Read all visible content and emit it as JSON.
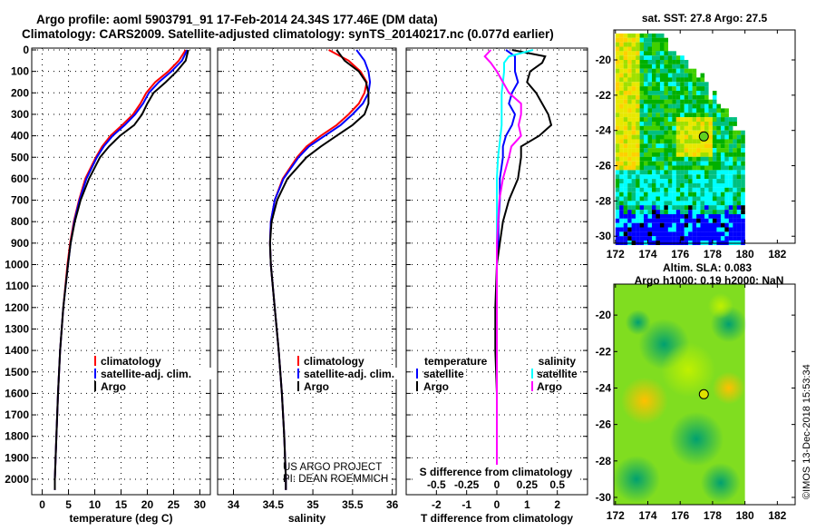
{
  "header": {
    "title_line1": "Argo profile: aoml 5903791_91 17-Feb-2014 24.34S 177.46E (DM data)",
    "title_line2": "Climatology: CARS2009. Satellite-adjusted climatology: synTS_20140217.nc (0.077d earlier)"
  },
  "credits": {
    "line1": "US ARGO PROJECT",
    "line2": "PI: DEAN ROEMMICH",
    "stamp": "©IMOS 13-Dec-2018 15:53:34"
  },
  "colors": {
    "climatology": "#ff0000",
    "satellite": "#0000ff",
    "argo": "#000000",
    "sal_satellite": "#00ffff",
    "sal_argo": "#ff00ff"
  },
  "chart_data": [
    {
      "type": "line",
      "id": "temperature",
      "xlabel": "temperature (deg C)",
      "ylabel": "",
      "xlim": [
        -2,
        32
      ],
      "ylim": [
        2080,
        0
      ],
      "xticks": [
        0,
        5,
        10,
        15,
        20,
        25,
        30
      ],
      "yticks": [
        0,
        100,
        200,
        300,
        400,
        500,
        600,
        700,
        800,
        900,
        1000,
        1100,
        1200,
        1300,
        1400,
        1500,
        1600,
        1700,
        1800,
        1900,
        2000
      ],
      "legend": [
        "climatology",
        "satellite-adj. clim.",
        "Argo"
      ],
      "depth": [
        0,
        50,
        100,
        150,
        200,
        250,
        300,
        350,
        400,
        450,
        500,
        600,
        700,
        800,
        900,
        1000,
        1200,
        1400,
        1600,
        1800,
        2000,
        2050
      ],
      "series": [
        {
          "name": "climatology",
          "values": [
            27.3,
            26.0,
            24.0,
            21.5,
            19.8,
            18.7,
            17.3,
            15.2,
            13.0,
            11.4,
            10.2,
            8.2,
            7.0,
            6.0,
            5.3,
            4.8,
            4.0,
            3.4,
            3.0,
            2.7,
            2.4,
            2.4
          ]
        },
        {
          "name": "satellite-adj. clim.",
          "values": [
            27.6,
            26.6,
            24.6,
            22.2,
            20.3,
            19.2,
            17.7,
            15.7,
            13.4,
            11.7,
            10.4,
            8.4,
            7.1,
            6.1,
            5.4,
            4.9,
            4.0,
            3.4,
            3.0,
            2.7,
            2.4,
            2.4
          ]
        },
        {
          "name": "Argo",
          "values": [
            27.8,
            27.3,
            25.6,
            23.5,
            21.2,
            20.0,
            19.0,
            17.5,
            14.8,
            12.7,
            11.0,
            8.9,
            7.3,
            6.2,
            5.4,
            4.9,
            4.0,
            3.4,
            3.0,
            2.7,
            2.4,
            2.4
          ]
        }
      ]
    },
    {
      "type": "line",
      "id": "salinity",
      "xlabel": "salinity",
      "ylabel": "",
      "xlim": [
        33.8,
        36.05
      ],
      "ylim": [
        2080,
        0
      ],
      "xticks": [
        34,
        34.5,
        35,
        35.5,
        36
      ],
      "xticklabels": [
        "34",
        "34.5",
        "35",
        "35.5",
        "36"
      ],
      "legend": [
        "climatology",
        "satellite-adj. clim.",
        "Argo"
      ],
      "depth": [
        0,
        50,
        100,
        150,
        200,
        250,
        300,
        350,
        400,
        450,
        500,
        600,
        700,
        800,
        900,
        1000,
        1200,
        1400,
        1600,
        1800,
        2000,
        2050
      ],
      "series": [
        {
          "name": "climatology",
          "values": [
            35.2,
            35.45,
            35.6,
            35.68,
            35.65,
            35.58,
            35.45,
            35.3,
            35.1,
            34.92,
            34.8,
            34.62,
            34.52,
            34.47,
            34.46,
            34.47,
            34.52,
            34.57,
            34.61,
            34.64,
            34.66,
            34.66
          ]
        },
        {
          "name": "satellite-adj. clim.",
          "values": [
            35.55,
            35.65,
            35.7,
            35.72,
            35.7,
            35.63,
            35.5,
            35.35,
            35.15,
            34.95,
            34.82,
            34.63,
            34.52,
            34.47,
            34.46,
            34.47,
            34.52,
            34.57,
            34.61,
            34.64,
            34.66,
            34.66
          ]
        },
        {
          "name": "Argo",
          "values": [
            35.3,
            35.4,
            35.58,
            35.67,
            35.7,
            35.7,
            35.65,
            35.5,
            35.3,
            35.1,
            34.92,
            34.68,
            34.55,
            34.48,
            34.46,
            34.47,
            34.52,
            34.57,
            34.61,
            34.64,
            34.66,
            34.66
          ]
        }
      ]
    },
    {
      "type": "line",
      "id": "difference",
      "xlabel": "T difference from climatology",
      "xlabel2": "S difference from climatology",
      "xlim": [
        -3,
        3
      ],
      "ylim": [
        2080,
        0
      ],
      "xticks": [
        -2,
        -1,
        0,
        1,
        2
      ],
      "s_xlim": [
        -0.75,
        0.75
      ],
      "s_xticks": [
        -0.5,
        -0.25,
        0,
        0.25,
        0.5
      ],
      "s_xticklabels": [
        "-0.5",
        "-0.25",
        "0",
        "0.25",
        "0.5"
      ],
      "legend_temperature": {
        "title": "temperature",
        "items": [
          "satellite",
          "Argo"
        ]
      },
      "legend_salinity": {
        "title": "salinity",
        "items": [
          "satellite",
          "Argo"
        ]
      },
      "depth": [
        0,
        30,
        60,
        100,
        150,
        200,
        250,
        300,
        350,
        400,
        450,
        500,
        600,
        700,
        800,
        900,
        1000,
        1200,
        1400,
        1600,
        1800,
        2000,
        2050
      ],
      "series": [
        {
          "name": "T satellite",
          "axis": "T",
          "values": [
            0.3,
            0.6,
            0.6,
            0.6,
            0.7,
            0.5,
            0.4,
            0.6,
            0.5,
            0.3,
            0.2,
            0.2,
            0.1,
            0.1,
            0.05,
            0.05,
            0.0,
            0.0,
            0.0,
            0.0,
            0.0,
            0.0,
            0.0
          ]
        },
        {
          "name": "T Argo",
          "axis": "T",
          "values": [
            0.5,
            1.6,
            1.5,
            1.1,
            1.0,
            1.3,
            1.5,
            1.7,
            1.8,
            1.4,
            0.8,
            0.8,
            0.7,
            0.4,
            0.2,
            0.1,
            0.0,
            -0.05,
            -0.05,
            0.0,
            0.0,
            0.0,
            0.0
          ]
        },
        {
          "name": "S satellite",
          "axis": "S",
          "values": [
            0.3,
            0.1,
            0.06,
            0.06,
            0.05,
            0.04,
            0.04,
            0.04,
            0.04,
            0.03,
            0.02,
            0.01,
            0.0,
            0.0,
            0.0,
            0.0,
            0.0,
            0.0,
            0.0,
            0.0,
            0.0,
            0.0,
            0.0
          ]
        },
        {
          "name": "S Argo",
          "axis": "S",
          "values": [
            -0.05,
            -0.1,
            -0.05,
            0.0,
            0.05,
            0.1,
            0.2,
            0.2,
            0.18,
            0.2,
            0.12,
            0.1,
            0.05,
            0.02,
            0.01,
            0.0,
            0.0,
            0.0,
            0.0,
            0.0,
            0.0,
            0.0,
            0.0
          ]
        }
      ]
    }
  ],
  "maps": [
    {
      "id": "sst",
      "title": "sat. SST: 27.8 Argo: 27.5",
      "lon_ticks": [
        172,
        174,
        176,
        178,
        180,
        182
      ],
      "lat_ticks": [
        -20,
        -22,
        -24,
        -26,
        -28,
        -30
      ],
      "lon_range": [
        171.9,
        183.1
      ],
      "lat_range": [
        -18.3,
        -30.4
      ],
      "float": {
        "lon": 177.46,
        "lat": -24.34
      }
    },
    {
      "id": "sla",
      "title": "Altim. SLA: 0.083",
      "subtitle": "Argo h1000: 0.19 h2000: NaN",
      "lon_ticks": [
        172,
        174,
        176,
        178,
        180,
        182
      ],
      "lat_ticks": [
        -20,
        -22,
        -24,
        -26,
        -28,
        -30
      ],
      "lon_range": [
        171.9,
        183.1
      ],
      "lat_range": [
        -18.3,
        -30.4
      ],
      "float": {
        "lon": 177.46,
        "lat": -24.34
      }
    }
  ]
}
